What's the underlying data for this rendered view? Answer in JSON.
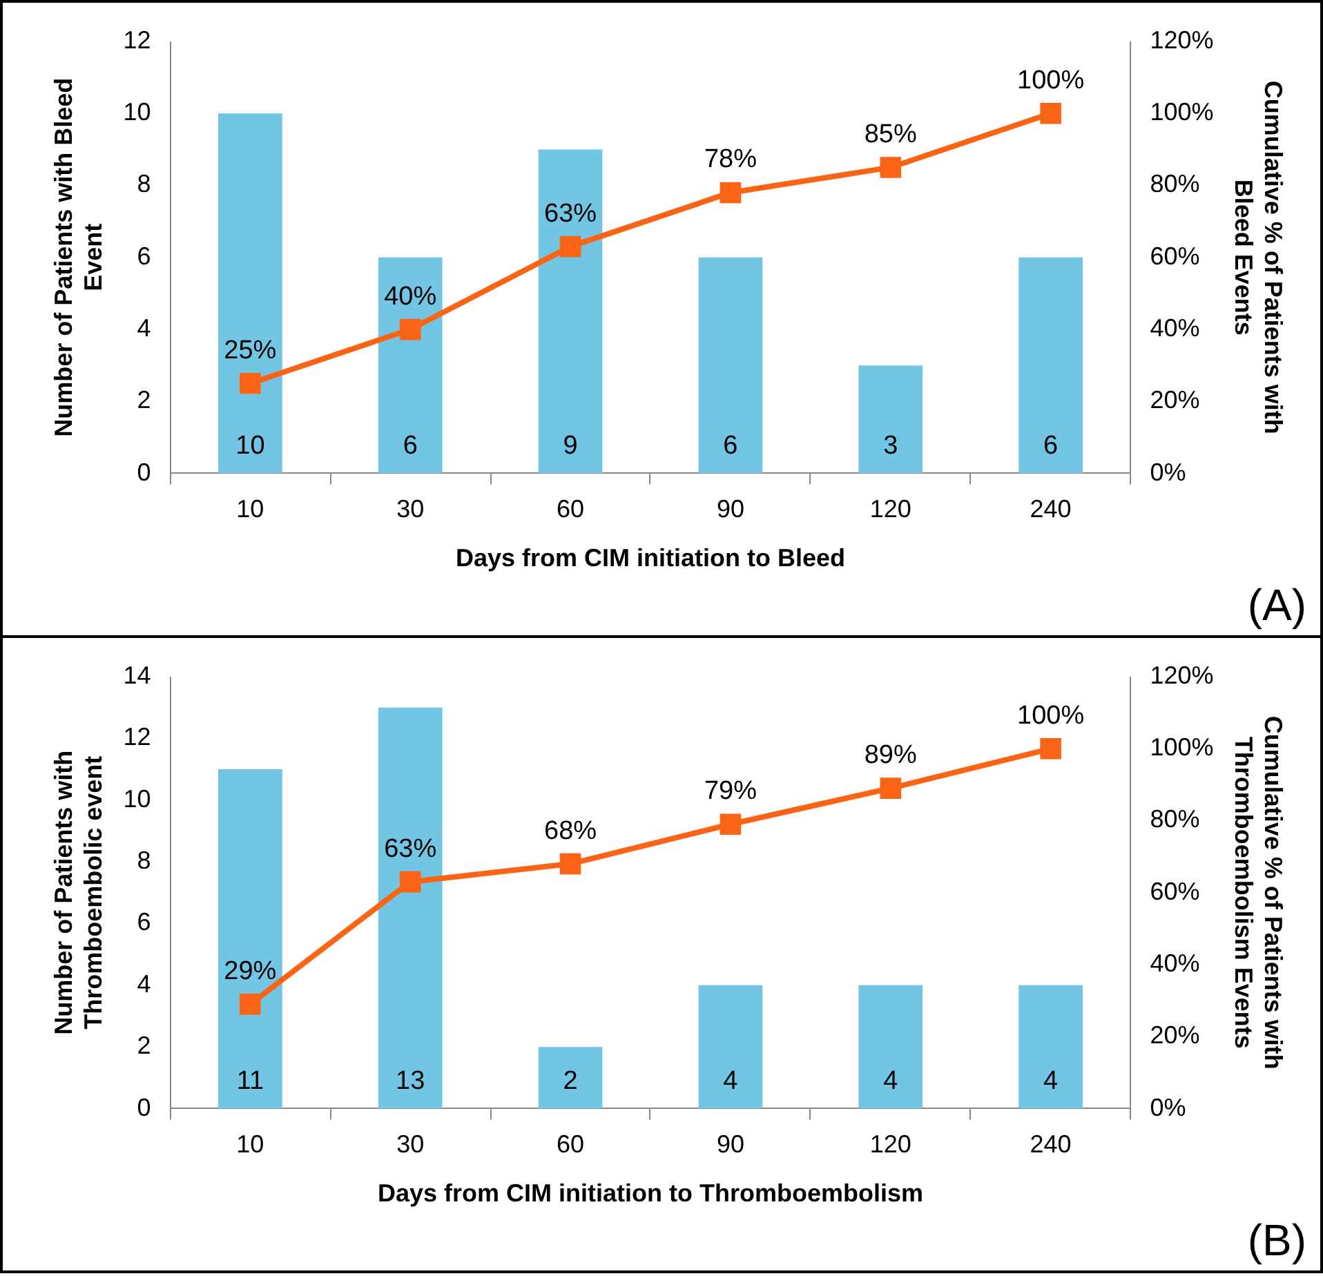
{
  "chart_data": [
    {
      "type": "bar",
      "xlabel": "Days from CIM initiation to Bleed",
      "ylabel": "Number of Patients with Bleed Event",
      "y2label": "Cumulative % of Patients with Bleed Events",
      "categories": [
        "10",
        "30",
        "60",
        "90",
        "120",
        "240"
      ],
      "series": [
        {
          "color": "#72c6e4",
          "values": [
            10,
            6,
            9,
            6,
            3,
            6
          ],
          "value_labels": [
            "10",
            "6",
            "9",
            "6",
            "3",
            "6"
          ]
        },
        {
          "type": "line",
          "axis": "y2",
          "color": "#fb6414",
          "marker": "square",
          "values": [
            25,
            40,
            63,
            78,
            85,
            100
          ],
          "value_labels": [
            "25%",
            "40%",
            "63%",
            "78%",
            "85%",
            "100%"
          ]
        }
      ],
      "ylim": [
        0,
        12
      ],
      "yticks": [
        0,
        2,
        4,
        6,
        8,
        10,
        12
      ],
      "y2lim": [
        0,
        120
      ],
      "y2ticks": [
        {
          "value": 0,
          "label": "0%"
        },
        {
          "value": 20,
          "label": "20%"
        },
        {
          "value": 40,
          "label": "40%"
        },
        {
          "value": 60,
          "label": "60%"
        },
        {
          "value": 80,
          "label": "80%"
        },
        {
          "value": 100,
          "label": "100%"
        },
        {
          "value": 120,
          "label": "120%"
        }
      ],
      "grid": false,
      "legend": false,
      "annotations": [
        "(A)"
      ]
    },
    {
      "type": "bar",
      "xlabel": "Days from CIM initiation to Thromboembolism",
      "ylabel": "Number of Patients with Thromboembolic event",
      "y2label": "Cumulative % of Patients with Thromboembolism Events",
      "categories": [
        "10",
        "30",
        "60",
        "90",
        "120",
        "240"
      ],
      "series": [
        {
          "color": "#72c6e4",
          "values": [
            11,
            13,
            2,
            4,
            4,
            4
          ],
          "value_labels": [
            "11",
            "13",
            "2",
            "4",
            "4",
            "4"
          ]
        },
        {
          "type": "line",
          "axis": "y2",
          "color": "#fb6414",
          "marker": "square",
          "values": [
            29,
            63,
            68,
            79,
            89,
            100
          ],
          "value_labels": [
            "29%",
            "63%",
            "68%",
            "79%",
            "89%",
            "100%"
          ]
        }
      ],
      "ylim": [
        0,
        14
      ],
      "yticks": [
        0,
        2,
        4,
        6,
        8,
        10,
        12,
        14
      ],
      "y2lim": [
        0,
        120
      ],
      "y2ticks": [
        {
          "value": 0,
          "label": "0%"
        },
        {
          "value": 20,
          "label": "20%"
        },
        {
          "value": 40,
          "label": "40%"
        },
        {
          "value": 60,
          "label": "60%"
        },
        {
          "value": 80,
          "label": "80%"
        },
        {
          "value": 100,
          "label": "100%"
        },
        {
          "value": 120,
          "label": "120%"
        }
      ],
      "grid": false,
      "legend": false,
      "annotations": [
        "(B)"
      ]
    }
  ]
}
